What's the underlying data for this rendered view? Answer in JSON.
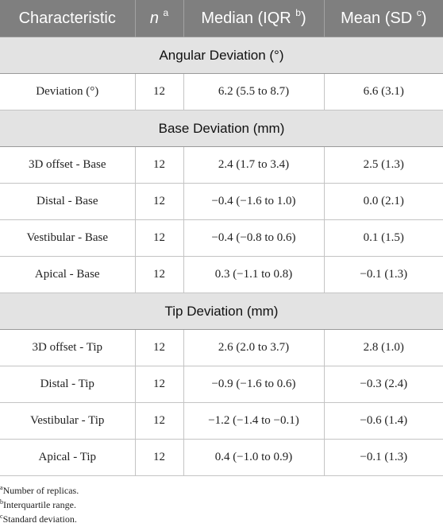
{
  "header": {
    "characteristic": "Characteristic",
    "n": "n",
    "n_sup": "a",
    "median": "Median (IQR ",
    "median_sup": "b",
    "median_close": ")",
    "mean": "Mean (SD ",
    "mean_sup": "c",
    "mean_close": ")"
  },
  "sections": [
    {
      "title": "Angular Deviation (°)",
      "rows": [
        {
          "characteristic": "Deviation (°)",
          "n": "12",
          "median": "6.2 (5.5 to 8.7)",
          "mean": "6.6 (3.1)"
        }
      ]
    },
    {
      "title": "Base Deviation (mm)",
      "rows": [
        {
          "characteristic": "3D offset - Base",
          "n": "12",
          "median": "2.4 (1.7 to 3.4)",
          "mean": "2.5 (1.3)"
        },
        {
          "characteristic": "Distal - Base",
          "n": "12",
          "median": "−0.4 (−1.6 to 1.0)",
          "mean": "0.0 (2.1)"
        },
        {
          "characteristic": "Vestibular - Base",
          "n": "12",
          "median": "−0.4 (−0.8 to 0.6)",
          "mean": "0.1 (1.5)"
        },
        {
          "characteristic": "Apical - Base",
          "n": "12",
          "median": "0.3 (−1.1 to 0.8)",
          "mean": "−0.1 (1.3)"
        }
      ]
    },
    {
      "title": "Tip Deviation (mm)",
      "rows": [
        {
          "characteristic": "3D offset - Tip",
          "n": "12",
          "median": "2.6 (2.0 to 3.7)",
          "mean": "2.8 (1.0)"
        },
        {
          "characteristic": "Distal - Tip",
          "n": "12",
          "median": "−0.9 (−1.6 to 0.6)",
          "mean": "−0.3 (2.4)"
        },
        {
          "characteristic": "Vestibular - Tip",
          "n": "12",
          "median": "−1.2 (−1.4 to −0.1)",
          "mean": "−0.6 (1.4)"
        },
        {
          "characteristic": "Apical - Tip",
          "n": "12",
          "median": "0.4 (−1.0 to 0.9)",
          "mean": "−0.1 (1.3)"
        }
      ]
    }
  ],
  "footnotes": [
    {
      "mark": "a",
      "text": "Number of replicas."
    },
    {
      "mark": "b",
      "text": "Interquartile range."
    },
    {
      "mark": "c",
      "text": "Standard deviation."
    }
  ]
}
